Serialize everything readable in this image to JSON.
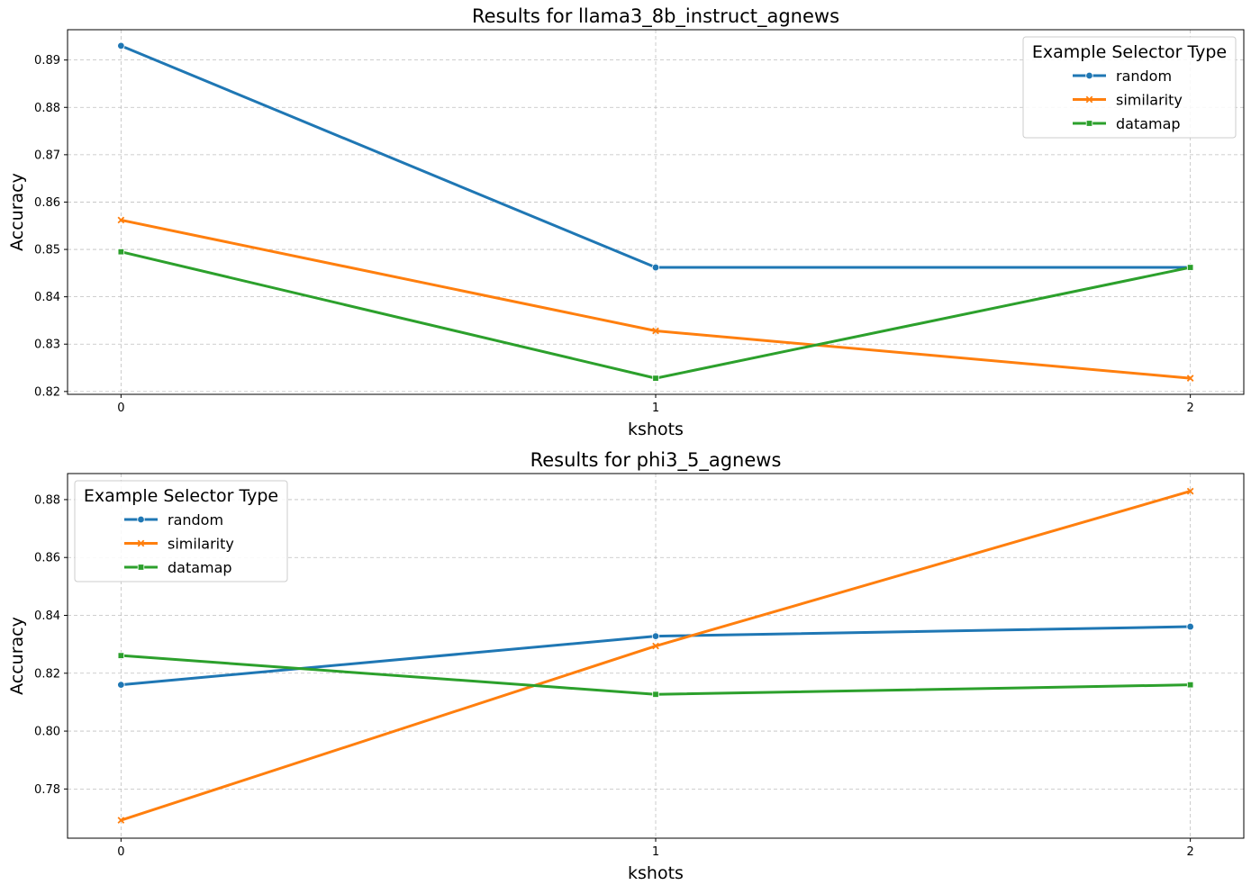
{
  "chart_data": [
    {
      "type": "line",
      "title": "Results for llama3_8b_instruct_agnews",
      "xlabel": "kshots",
      "ylabel": "Accuracy",
      "x": [
        0,
        1,
        2
      ],
      "x_ticks": [
        "0",
        "1",
        "2"
      ],
      "xlim": [
        -0.1,
        2.1
      ],
      "ylim": [
        0.8194,
        0.8964
      ],
      "y_ticks": [
        0.82,
        0.83,
        0.84,
        0.85,
        0.86,
        0.87,
        0.88,
        0.89
      ],
      "y_tick_labels": [
        "0.82",
        "0.83",
        "0.84",
        "0.85",
        "0.86",
        "0.87",
        "0.88",
        "0.89"
      ],
      "grid": true,
      "legend": {
        "title": "Example Selector Type",
        "position": "top-right"
      },
      "series": [
        {
          "name": "random",
          "values": [
            0.893,
            0.8462,
            0.8462
          ],
          "color": "#1f77b4",
          "marker": "circle"
        },
        {
          "name": "similarity",
          "values": [
            0.8562,
            0.8328,
            0.8228
          ],
          "color": "#ff7f0e",
          "marker": "x"
        },
        {
          "name": "datamap",
          "values": [
            0.8495,
            0.8228,
            0.8462
          ],
          "color": "#2ca02c",
          "marker": "square"
        }
      ]
    },
    {
      "type": "line",
      "title": "Results for phi3_5_agnews",
      "xlabel": "kshots",
      "ylabel": "Accuracy",
      "x": [
        0,
        1,
        2
      ],
      "x_ticks": [
        "0",
        "1",
        "2"
      ],
      "xlim": [
        -0.1,
        2.1
      ],
      "ylim": [
        0.763,
        0.889
      ],
      "y_ticks": [
        0.78,
        0.8,
        0.82,
        0.84,
        0.86,
        0.88
      ],
      "y_tick_labels": [
        "0.78",
        "0.80",
        "0.82",
        "0.84",
        "0.86",
        "0.88"
      ],
      "grid": true,
      "legend": {
        "title": "Example Selector Type",
        "position": "top-left"
      },
      "series": [
        {
          "name": "random",
          "values": [
            0.816,
            0.8328,
            0.8361
          ],
          "color": "#1f77b4",
          "marker": "circle"
        },
        {
          "name": "similarity",
          "values": [
            0.7692,
            0.8294,
            0.8829
          ],
          "color": "#ff7f0e",
          "marker": "x"
        },
        {
          "name": "datamap",
          "values": [
            0.8261,
            0.8127,
            0.816
          ],
          "color": "#2ca02c",
          "marker": "square"
        }
      ]
    }
  ]
}
